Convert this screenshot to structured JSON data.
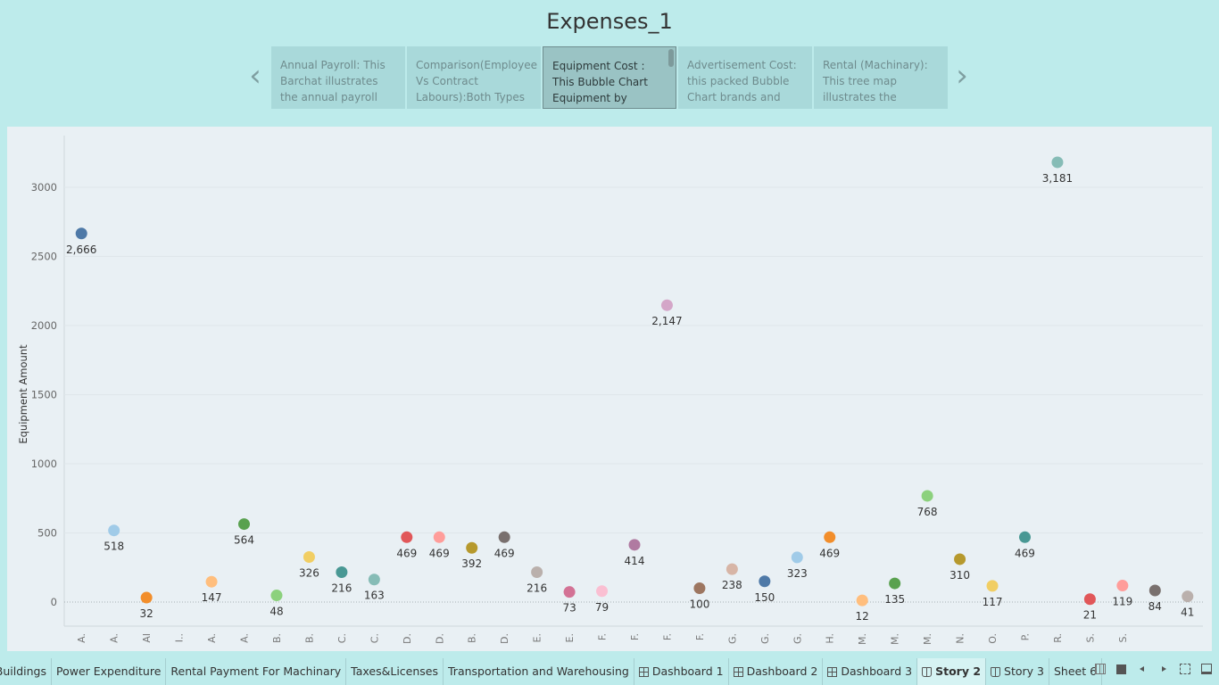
{
  "story": {
    "title": "Expenses_1"
  },
  "story_points": [
    {
      "text": "Annual Payroll: This Barchat illustrates the annual payroll",
      "active": false
    },
    {
      "text": "Comparison(Employee Vs Contract Labours):Both Types",
      "active": false
    },
    {
      "text": "Equipment Cost : This Bubble Chart Equipment by",
      "active": true
    },
    {
      "text": "Advertisement Cost: this packed Bubble Chart brands and",
      "active": false
    },
    {
      "text": "Rental (Machinary): This tree map illustrates the",
      "active": false
    }
  ],
  "icons": {
    "prev": "chevron-left-icon",
    "next": "chevron-right-icon"
  },
  "chart_data": {
    "type": "scatter",
    "ylabel": "Equipment Amount",
    "ylim": [
      -150,
      3400
    ],
    "yticks": [
      0,
      500,
      1000,
      1500,
      2000,
      2500,
      3000
    ],
    "categories": [
      "A.",
      "A.",
      "Al",
      "I..",
      "A.",
      "A.",
      "B.",
      "B.",
      "C.",
      "C.",
      "D.",
      "D.",
      "B.",
      "D.",
      "E.",
      "E.",
      "F.",
      "F.",
      "F.",
      "F.",
      "G.",
      "G.",
      "G.",
      "H.",
      "M.",
      "M.",
      "M.",
      "N.",
      "O.",
      "P.",
      "R.",
      "S.",
      "S.",
      "",
      ""
    ],
    "values": [
      2666,
      518,
      32,
      null,
      147,
      564,
      48,
      326,
      216,
      163,
      469,
      469,
      392,
      469,
      216,
      73,
      79,
      414,
      2147,
      100,
      238,
      150,
      323,
      469,
      12,
      135,
      768,
      310,
      117,
      469,
      3181,
      21,
      119,
      84,
      41
    ],
    "labels": [
      "2,666",
      "518",
      "32",
      "",
      "147",
      "564",
      "48",
      "326",
      "216",
      "163",
      "469",
      "469",
      "392",
      "469",
      "216",
      "73",
      "79",
      "414",
      "2,147",
      "100",
      "238",
      "150",
      "323",
      "469",
      "12",
      "135",
      "768",
      "310",
      "117",
      "469",
      "3,181",
      "21",
      "119",
      "84",
      "41"
    ],
    "colors": [
      "#4e79a7",
      "#a0cbe8",
      "#f28e2b",
      "#ffffff",
      "#ffbe7d",
      "#59a14f",
      "#8cd17d",
      "#f1ce63",
      "#499894",
      "#86bcb6",
      "#e15759",
      "#ff9d9a",
      "#b6992d",
      "#79706e",
      "#bab0ac",
      "#d37295",
      "#fabfd2",
      "#b07aa1",
      "#d4a6c8",
      "#9d7660",
      "#d7b5a6",
      "#4e79a7",
      "#a0cbe8",
      "#f28e2b",
      "#ffbe7d",
      "#59a14f",
      "#8cd17d",
      "#b6992d",
      "#f1ce63",
      "#499894",
      "#86bcb6",
      "#e15759",
      "#ff9d9a",
      "#79706e",
      "#bab0ac"
    ],
    "grid": true
  },
  "tabs": [
    {
      "label": "ce Of Buildings",
      "icon": "",
      "active": false
    },
    {
      "label": "Power Expenditure",
      "icon": "",
      "active": false
    },
    {
      "label": "Rental Payment For Machinary",
      "icon": "",
      "active": false
    },
    {
      "label": "Taxes&Licenses",
      "icon": "",
      "active": false
    },
    {
      "label": "Transportation and Warehousing",
      "icon": "",
      "active": false
    },
    {
      "label": "Dashboard 1",
      "icon": "dashboard-icon",
      "active": false
    },
    {
      "label": "Dashboard 2",
      "icon": "dashboard-icon",
      "active": false
    },
    {
      "label": "Dashboard 3",
      "icon": "dashboard-icon",
      "active": false
    },
    {
      "label": "Story 2",
      "icon": "story-icon",
      "active": true
    },
    {
      "label": "Story 3",
      "icon": "story-icon",
      "active": false
    },
    {
      "label": "Sheet 6",
      "icon": "",
      "active": false
    }
  ],
  "controls": [
    "grid-view-icon",
    "filmstrip-icon",
    "prev-sheet-icon",
    "next-sheet-icon",
    "fullscreen-icon",
    "presentation-icon"
  ]
}
